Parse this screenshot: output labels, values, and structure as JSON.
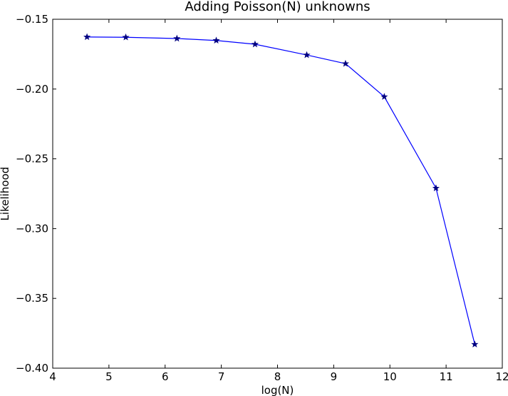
{
  "chart_data": {
    "type": "line",
    "title": "Adding Poisson(N) unknowns",
    "xlabel": "log(N)",
    "ylabel": "Likelihood",
    "xlim": [
      4,
      12
    ],
    "ylim": [
      -0.4,
      -0.15
    ],
    "xticks": [
      4,
      5,
      6,
      7,
      8,
      9,
      10,
      11,
      12
    ],
    "xtick_labels": [
      "4",
      "5",
      "6",
      "7",
      "8",
      "9",
      "10",
      "11",
      "12"
    ],
    "yticks": [
      -0.4,
      -0.35,
      -0.3,
      -0.25,
      -0.2,
      -0.15
    ],
    "ytick_labels": [
      "−0.40",
      "−0.35",
      "−0.30",
      "−0.25",
      "−0.20",
      "−0.15"
    ],
    "grid": false,
    "marker": "star",
    "series": [
      {
        "color": "#0000ff",
        "marker_color": "#000080",
        "x": [
          4.61,
          5.3,
          6.21,
          6.91,
          7.6,
          8.52,
          9.21,
          9.9,
          10.82,
          11.51
        ],
        "y": [
          -0.1627,
          -0.1629,
          -0.1638,
          -0.1652,
          -0.1679,
          -0.1756,
          -0.1818,
          -0.2055,
          -0.271,
          -0.3829
        ]
      }
    ]
  }
}
